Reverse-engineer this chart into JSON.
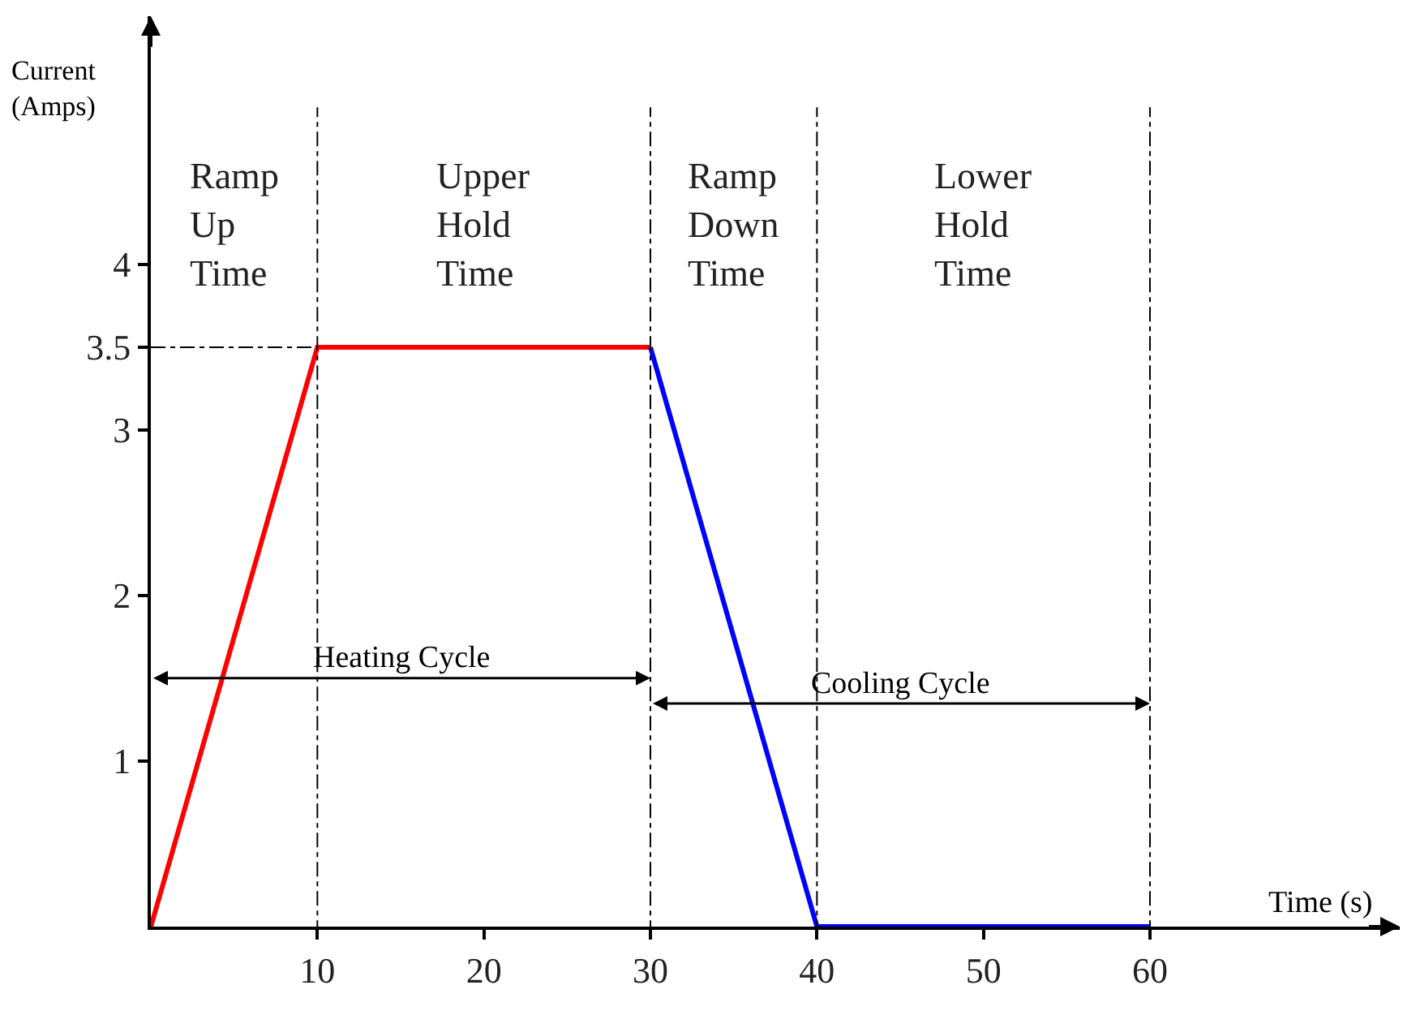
{
  "chart_data": {
    "type": "line",
    "series": [
      {
        "color": "#ff0000",
        "x": [
          0,
          10,
          30
        ],
        "values": [
          0,
          3.5,
          3.5
        ]
      },
      {
        "color": "#0000ff",
        "x": [
          30,
          40,
          60
        ],
        "values": [
          3.5,
          0,
          0
        ]
      }
    ],
    "xlabel": "Time (s)",
    "ylabel": "Current\n(Amps)",
    "xlim": [
      0,
      75
    ],
    "ylim": [
      0,
      5.5
    ],
    "xticks": [
      10,
      20,
      30,
      40,
      50,
      60
    ],
    "yticks": [
      1,
      2,
      3,
      3.5,
      4
    ],
    "ref_lines": [
      {
        "axis": "x",
        "value": 10,
        "line_style": "dashdot",
        "color": "#000000"
      },
      {
        "axis": "x",
        "value": 30,
        "line_style": "dashdot",
        "color": "#000000"
      },
      {
        "axis": "x",
        "value": 40,
        "line_style": "dashdot",
        "color": "#000000"
      },
      {
        "axis": "x",
        "value": 60,
        "line_style": "dashdot",
        "color": "#000000"
      },
      {
        "axis": "y",
        "value": 3.5,
        "line_style": "dashdot",
        "color": "#000000"
      }
    ],
    "annotations": [
      "Heating Cycle",
      "Cooling Cycle",
      "Ramp\nUp\nTime",
      "Upper\nHold\nTime",
      "Ramp\nDown\nTime",
      "Lower\nHold\nTime"
    ],
    "marker": "none",
    "line_style": "solid"
  }
}
